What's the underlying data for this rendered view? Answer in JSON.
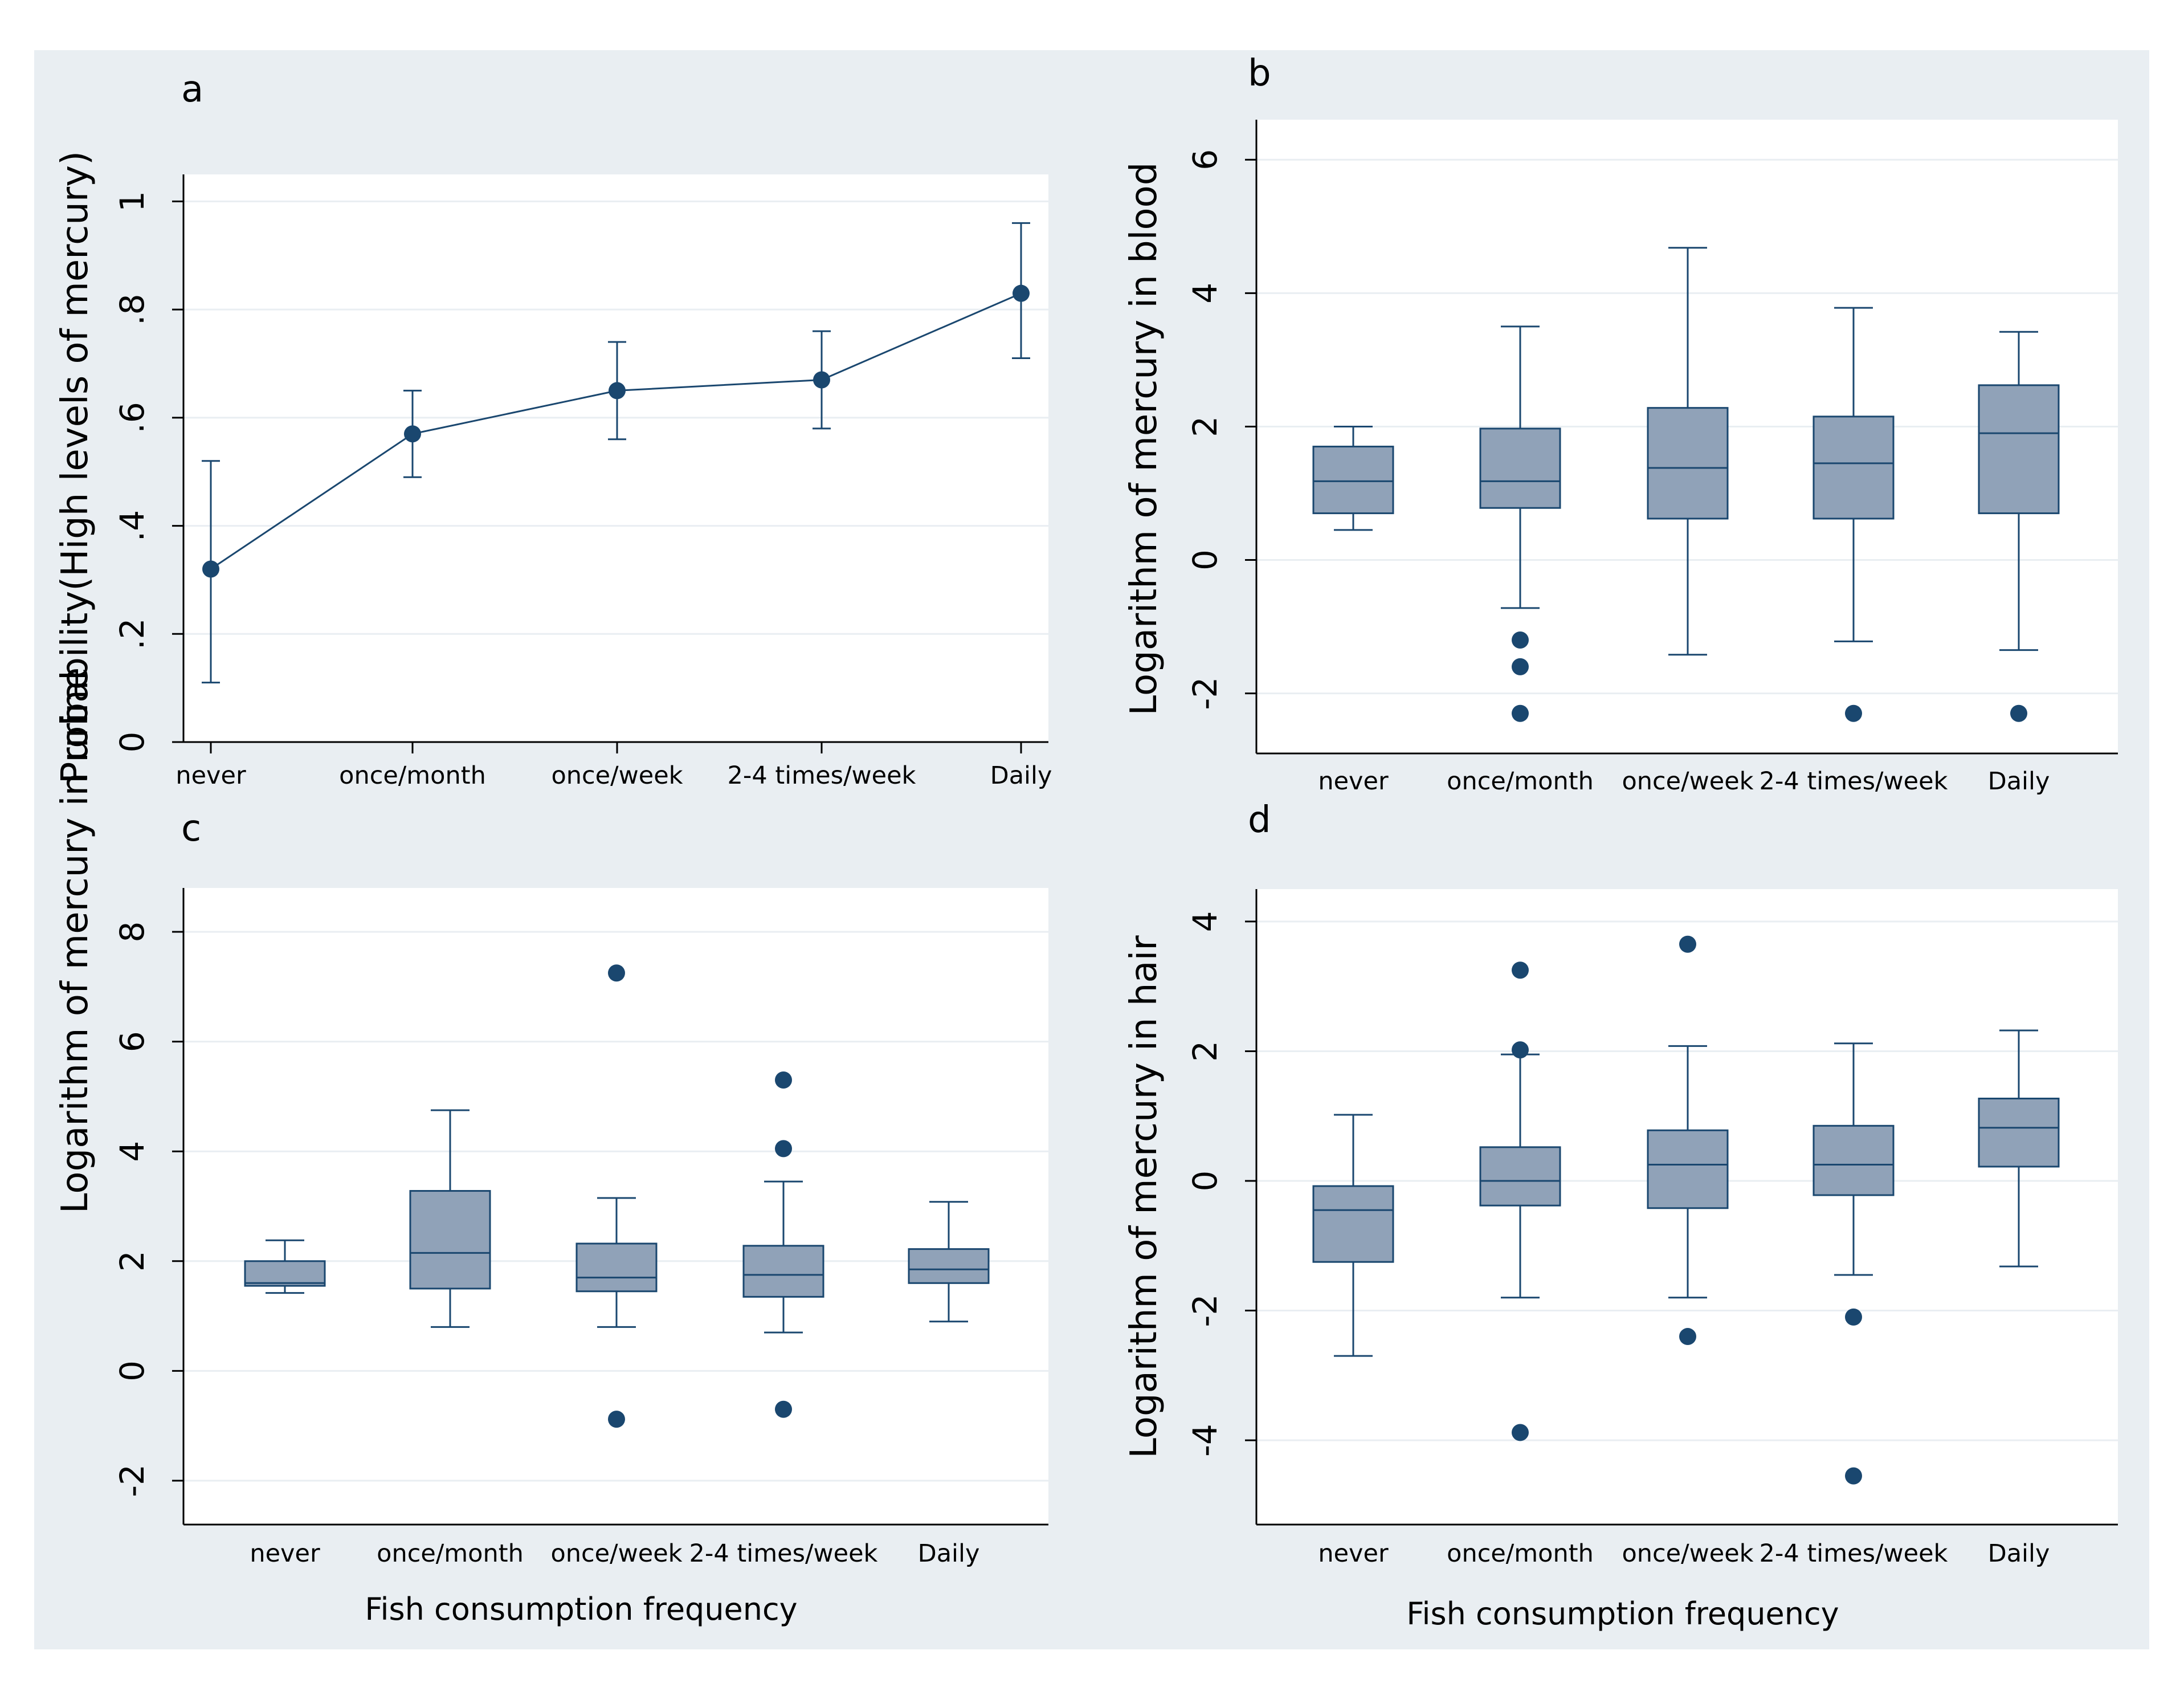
{
  "colors": {
    "outer_background": "#e9eef2",
    "plot_background": "#ffffff",
    "gridline": "#e9eef2",
    "marker": "#1a476f",
    "box_fill": "#90a2b8",
    "line": "#1a476f"
  },
  "categories": [
    "never",
    "once/month",
    "once/week",
    "2-4 times/week",
    "Daily"
  ],
  "xlabel_bottom": "Fish consumption frequency",
  "chart_data": [
    {
      "panel": "a",
      "type": "line",
      "ylabel": "Probability(High levels of mercury)",
      "ylim": [
        0,
        1.05
      ],
      "ytick_values": [
        0,
        0.2,
        0.4,
        0.6,
        0.8,
        1
      ],
      "ytick_labels": [
        "0",
        ".2",
        ".4",
        ".6",
        ".8",
        "1"
      ],
      "categories": [
        "never",
        "once/month",
        "once/week",
        "2-4 times/week",
        "Daily"
      ],
      "points": [
        {
          "category": "never",
          "value": 0.32,
          "ci_low": 0.11,
          "ci_high": 0.52
        },
        {
          "category": "once/month",
          "value": 0.57,
          "ci_low": 0.49,
          "ci_high": 0.65
        },
        {
          "category": "once/week",
          "value": 0.65,
          "ci_low": 0.56,
          "ci_high": 0.74
        },
        {
          "category": "2-4 times/week",
          "value": 0.67,
          "ci_low": 0.58,
          "ci_high": 0.76
        },
        {
          "category": "Daily",
          "value": 0.83,
          "ci_low": 0.71,
          "ci_high": 0.96
        }
      ]
    },
    {
      "panel": "b",
      "type": "box",
      "ylabel": "Logarithm of mercury in blood",
      "ylim": [
        -2.9,
        6.6
      ],
      "ytick_values": [
        -2,
        0,
        2,
        4,
        6
      ],
      "ytick_labels": [
        "-2",
        "0",
        "2",
        "4",
        "6"
      ],
      "categories": [
        "never",
        "once/month",
        "once/week",
        "2-4 times/week",
        "Daily"
      ],
      "boxes": [
        {
          "category": "never",
          "whisker_low": 0.45,
          "q1": 0.7,
          "median": 1.18,
          "q3": 1.7,
          "whisker_high": 2.0,
          "outliers": []
        },
        {
          "category": "once/month",
          "whisker_low": -0.72,
          "q1": 0.78,
          "median": 1.18,
          "q3": 1.97,
          "whisker_high": 3.5,
          "outliers": [
            -1.2,
            -1.6,
            -2.3
          ]
        },
        {
          "category": "once/week",
          "whisker_low": -1.42,
          "q1": 0.62,
          "median": 1.38,
          "q3": 2.28,
          "whisker_high": 4.68,
          "outliers": []
        },
        {
          "category": "2-4 times/week",
          "whisker_low": -1.22,
          "q1": 0.62,
          "median": 1.45,
          "q3": 2.15,
          "whisker_high": 3.78,
          "outliers": [
            -2.3
          ]
        },
        {
          "category": "Daily",
          "whisker_low": -1.35,
          "q1": 0.7,
          "median": 1.9,
          "q3": 2.62,
          "whisker_high": 3.42,
          "outliers": [
            -2.3
          ]
        }
      ]
    },
    {
      "panel": "c",
      "type": "box",
      "ylabel": "Logarithm of mercury in urine",
      "ylim": [
        -2.8,
        8.8
      ],
      "ytick_values": [
        -2,
        0,
        2,
        4,
        6,
        8
      ],
      "ytick_labels": [
        "-2",
        "0",
        "2",
        "4",
        "6",
        "8"
      ],
      "categories": [
        "never",
        "once/month",
        "once/week",
        "2-4 times/week",
        "Daily"
      ],
      "boxes": [
        {
          "category": "never",
          "whisker_low": 1.42,
          "q1": 1.55,
          "median": 1.6,
          "q3": 2.0,
          "whisker_high": 2.38,
          "outliers": []
        },
        {
          "category": "once/month",
          "whisker_low": 0.8,
          "q1": 1.5,
          "median": 2.15,
          "q3": 3.28,
          "whisker_high": 4.75,
          "outliers": []
        },
        {
          "category": "once/week",
          "whisker_low": 0.8,
          "q1": 1.45,
          "median": 1.7,
          "q3": 2.32,
          "whisker_high": 3.15,
          "outliers": [
            7.25,
            -0.88
          ]
        },
        {
          "category": "2-4 times/week",
          "whisker_low": 0.7,
          "q1": 1.35,
          "median": 1.75,
          "q3": 2.28,
          "whisker_high": 3.45,
          "outliers": [
            5.3,
            4.05,
            -0.7
          ]
        },
        {
          "category": "Daily",
          "whisker_low": 0.9,
          "q1": 1.6,
          "median": 1.85,
          "q3": 2.22,
          "whisker_high": 3.08,
          "outliers": []
        }
      ]
    },
    {
      "panel": "d",
      "type": "box",
      "ylabel": "Logarithm of mercury in hair",
      "ylim": [
        -5.3,
        4.5
      ],
      "ytick_values": [
        -4,
        -2,
        0,
        2,
        4
      ],
      "ytick_labels": [
        "-4",
        "-2",
        "0",
        "2",
        "4"
      ],
      "categories": [
        "never",
        "once/month",
        "once/week",
        "2-4 times/week",
        "Daily"
      ],
      "boxes": [
        {
          "category": "never",
          "whisker_low": -2.7,
          "q1": -1.25,
          "median": -0.45,
          "q3": -0.08,
          "whisker_high": 1.02,
          "outliers": []
        },
        {
          "category": "once/month",
          "whisker_low": -1.8,
          "q1": -0.38,
          "median": 0.0,
          "q3": 0.52,
          "whisker_high": 1.95,
          "outliers": [
            3.25,
            2.02,
            -3.88
          ]
        },
        {
          "category": "once/week",
          "whisker_low": -1.8,
          "q1": -0.42,
          "median": 0.25,
          "q3": 0.78,
          "whisker_high": 2.08,
          "outliers": [
            3.65,
            -2.4
          ]
        },
        {
          "category": "2-4 times/week",
          "whisker_low": -1.45,
          "q1": -0.22,
          "median": 0.25,
          "q3": 0.85,
          "whisker_high": 2.12,
          "outliers": [
            -2.1,
            -4.55
          ]
        },
        {
          "category": "Daily",
          "whisker_low": -1.32,
          "q1": 0.22,
          "median": 0.82,
          "q3": 1.27,
          "whisker_high": 2.32,
          "outliers": []
        }
      ]
    }
  ]
}
